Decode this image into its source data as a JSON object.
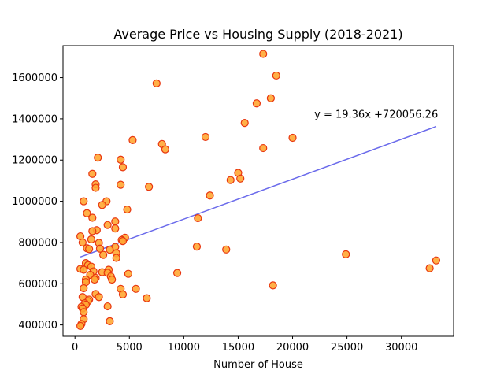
{
  "chart_data": {
    "type": "scatter",
    "title": "Average Price vs Housing Supply (2018-2021)",
    "xlabel": "Number of House",
    "ylabel": "",
    "xlim": [
      -1100,
      34800
    ],
    "ylim": [
      345000,
      1755000
    ],
    "x_ticks": [
      0,
      5000,
      10000,
      15000,
      20000,
      25000,
      30000
    ],
    "x_tick_labels": [
      "0",
      "5000",
      "10000",
      "15000",
      "20000",
      "25000",
      "30000"
    ],
    "y_ticks": [
      400000,
      600000,
      800000,
      1000000,
      1200000,
      1400000,
      1600000
    ],
    "y_tick_labels": [
      "400000",
      "600000",
      "800000",
      "1000000",
      "1200000",
      "1400000",
      "1600000"
    ],
    "grid": false,
    "annotation": "y = 19.36x +720056.26",
    "annotation_position": {
      "x": 22000,
      "y": 1405000
    },
    "trendline": {
      "slope": 19.36,
      "intercept": 720056.26,
      "x_range": [
        500,
        33200
      ]
    },
    "colors": {
      "marker_fill": "#ffa733",
      "marker_edge": "#e8360f",
      "trend_line": "#5050e8"
    },
    "points": [
      [
        17300,
        1715000
      ],
      [
        18500,
        1610000
      ],
      [
        7500,
        1572000
      ],
      [
        18000,
        1500000
      ],
      [
        16700,
        1475000
      ],
      [
        15600,
        1380000
      ],
      [
        8000,
        1278000
      ],
      [
        20000,
        1308000
      ],
      [
        12000,
        1312000
      ],
      [
        5300,
        1297000
      ],
      [
        17300,
        1258000
      ],
      [
        8300,
        1252000
      ],
      [
        2100,
        1212000
      ],
      [
        4200,
        1202000
      ],
      [
        4400,
        1165000
      ],
      [
        1600,
        1133000
      ],
      [
        15000,
        1138000
      ],
      [
        15200,
        1110000
      ],
      [
        14300,
        1103000
      ],
      [
        1900,
        1082000
      ],
      [
        4200,
        1080000
      ],
      [
        6800,
        1070000
      ],
      [
        1900,
        1065000
      ],
      [
        12400,
        1028000
      ],
      [
        800,
        1000000
      ],
      [
        2900,
        1000000
      ],
      [
        2500,
        982000
      ],
      [
        4800,
        960000
      ],
      [
        1100,
        942000
      ],
      [
        1600,
        920000
      ],
      [
        11300,
        918000
      ],
      [
        3700,
        902000
      ],
      [
        3000,
        885000
      ],
      [
        3700,
        868000
      ],
      [
        2000,
        860000
      ],
      [
        1600,
        855000
      ],
      [
        500,
        830000
      ],
      [
        4600,
        823000
      ],
      [
        4300,
        812000
      ],
      [
        1500,
        815000
      ],
      [
        4400,
        807000
      ],
      [
        700,
        800000
      ],
      [
        2200,
        798000
      ],
      [
        11200,
        780000
      ],
      [
        3700,
        778000
      ],
      [
        1100,
        772000
      ],
      [
        2300,
        770000
      ],
      [
        1300,
        768000
      ],
      [
        13900,
        766000
      ],
      [
        3200,
        765000
      ],
      [
        3800,
        748000
      ],
      [
        2600,
        740000
      ],
      [
        24900,
        743000
      ],
      [
        3800,
        725000
      ],
      [
        33200,
        713000
      ],
      [
        1000,
        700000
      ],
      [
        1200,
        690000
      ],
      [
        1500,
        683000
      ],
      [
        32600,
        675000
      ],
      [
        500,
        672000
      ],
      [
        800,
        668000
      ],
      [
        3100,
        668000
      ],
      [
        1700,
        660000
      ],
      [
        2500,
        656000
      ],
      [
        3000,
        653000
      ],
      [
        9400,
        652000
      ],
      [
        4900,
        648000
      ],
      [
        1400,
        643000
      ],
      [
        3300,
        635000
      ],
      [
        1900,
        628000
      ],
      [
        1000,
        620000
      ],
      [
        1800,
        620000
      ],
      [
        3400,
        620000
      ],
      [
        1000,
        608000
      ],
      [
        800,
        578000
      ],
      [
        18200,
        592000
      ],
      [
        4200,
        575000
      ],
      [
        5600,
        575000
      ],
      [
        1900,
        550000
      ],
      [
        4400,
        548000
      ],
      [
        2200,
        535000
      ],
      [
        700,
        535000
      ],
      [
        6600,
        530000
      ],
      [
        1300,
        523000
      ],
      [
        1200,
        515000
      ],
      [
        900,
        505000
      ],
      [
        1000,
        498000
      ],
      [
        600,
        488000
      ],
      [
        3000,
        490000
      ],
      [
        700,
        480000
      ],
      [
        800,
        462000
      ],
      [
        800,
        428000
      ],
      [
        3200,
        418000
      ],
      [
        600,
        405000
      ],
      [
        500,
        395000
      ]
    ]
  }
}
